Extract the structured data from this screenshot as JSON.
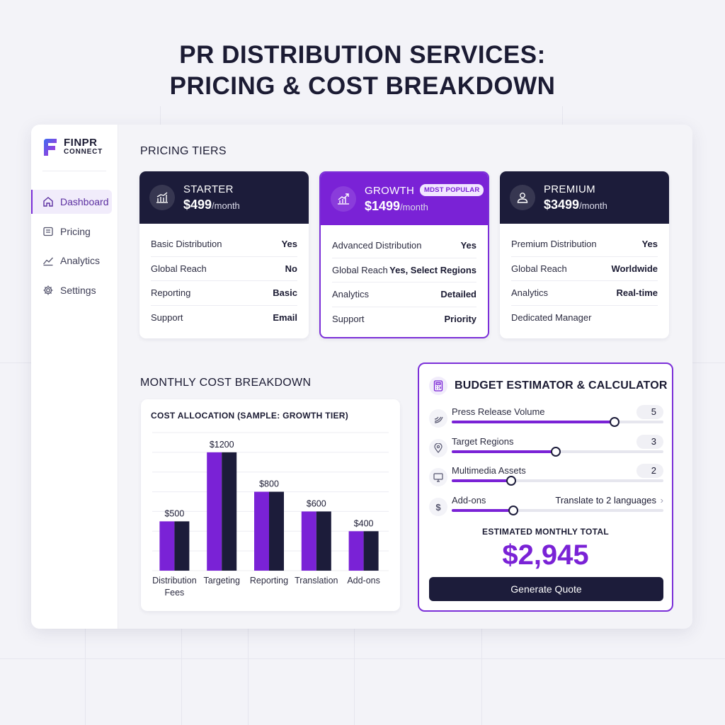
{
  "page_title_line1": "PR DISTRIBUTION SERVICES:",
  "page_title_line2": "PRICING & COST BREAKDOWN",
  "logo": {
    "line1": "FINPR",
    "line2": "CONNECT"
  },
  "sidebar": {
    "items": [
      {
        "label": "Dashboard",
        "icon": "home-icon",
        "active": true
      },
      {
        "label": "Pricing",
        "icon": "list-icon",
        "active": false
      },
      {
        "label": "Analytics",
        "icon": "trend-icon",
        "active": false
      },
      {
        "label": "Settings",
        "icon": "gear-icon",
        "active": false
      }
    ]
  },
  "pricing": {
    "section_title": "PRICING TIERS",
    "tiers": [
      {
        "name": "STARTER",
        "price": "$499",
        "period": "/month",
        "icon": "bar-chart-icon",
        "rows": [
          {
            "label": "Basic Distribution",
            "value": "Yes"
          },
          {
            "label": "Global Reach",
            "value": "No"
          },
          {
            "label": "Reporting",
            "value": "Basic"
          },
          {
            "label": "Support",
            "value": "Email"
          }
        ]
      },
      {
        "name": "GROWTH",
        "price": "$1499",
        "period": "/month",
        "badge": "MDST POPULAR",
        "icon": "growth-chart-icon",
        "rows": [
          {
            "label": "Advanced Distribution",
            "value": "Yes"
          },
          {
            "label": "Global Reach",
            "value": "Yes, Select Regions"
          },
          {
            "label": "Analytics",
            "value": "Detailed"
          },
          {
            "label": "Support",
            "value": "Priority"
          }
        ]
      },
      {
        "name": "PREMIUM",
        "price": "$3499",
        "period": "/month",
        "icon": "user-icon",
        "rows": [
          {
            "label": "Premium Distribution",
            "value": "Yes"
          },
          {
            "label": "Global Reach",
            "value": "Worldwide"
          },
          {
            "label": "Analytics",
            "value": "Real-time"
          },
          {
            "label": "Dedicated Manager",
            "value": ""
          }
        ]
      }
    ]
  },
  "breakdown": {
    "section_title": "MONTHLY COST BREAKDOWN",
    "chart_title": "COST ALLOCATION (SAMPLE: GROWTH TIER)"
  },
  "chart_data": {
    "type": "bar",
    "title": "COST ALLOCATION (SAMPLE: GROWTH TIER)",
    "categories": [
      "Distribution Fees",
      "Targeting",
      "Reporting",
      "Translation",
      "Add-ons"
    ],
    "category_lines": [
      [
        "Distribution",
        "Fees"
      ],
      [
        "Targeting"
      ],
      [
        "Reporting"
      ],
      [
        "Translation"
      ],
      [
        "Add-ons"
      ]
    ],
    "values": [
      500,
      1200,
      800,
      600,
      400
    ],
    "data_labels": [
      "$500",
      "$1200",
      "$800",
      "$600",
      "$400"
    ],
    "ylim": [
      0,
      1400
    ],
    "grid": true,
    "colors": {
      "bar_left": "#7a22d6",
      "bar_right": "#1c1c3a"
    }
  },
  "calculator": {
    "title": "BUDGET ESTIMATOR & CALCULATOR",
    "rows": [
      {
        "label": "Press Release Volume",
        "value": "5",
        "level": 0.77,
        "icon": "megaphone-icon"
      },
      {
        "label": "Target Regions",
        "value": "3",
        "level": 0.49,
        "icon": "location-pin-icon"
      },
      {
        "label": "Multimedia Assets",
        "value": "2",
        "level": 0.28,
        "icon": "monitor-icon"
      },
      {
        "label": "Add-ons",
        "value": "Translate to 2 languages",
        "level": 0.29,
        "icon": "dollar-icon"
      }
    ],
    "total_label": "ESTIMATED MONTHLY TOTAL",
    "total_value": "$2,945",
    "button_label": "Generate Quote"
  },
  "colors": {
    "accent": "#7a22d6",
    "dark": "#1c1c3a",
    "background": "#f3f3f8"
  }
}
